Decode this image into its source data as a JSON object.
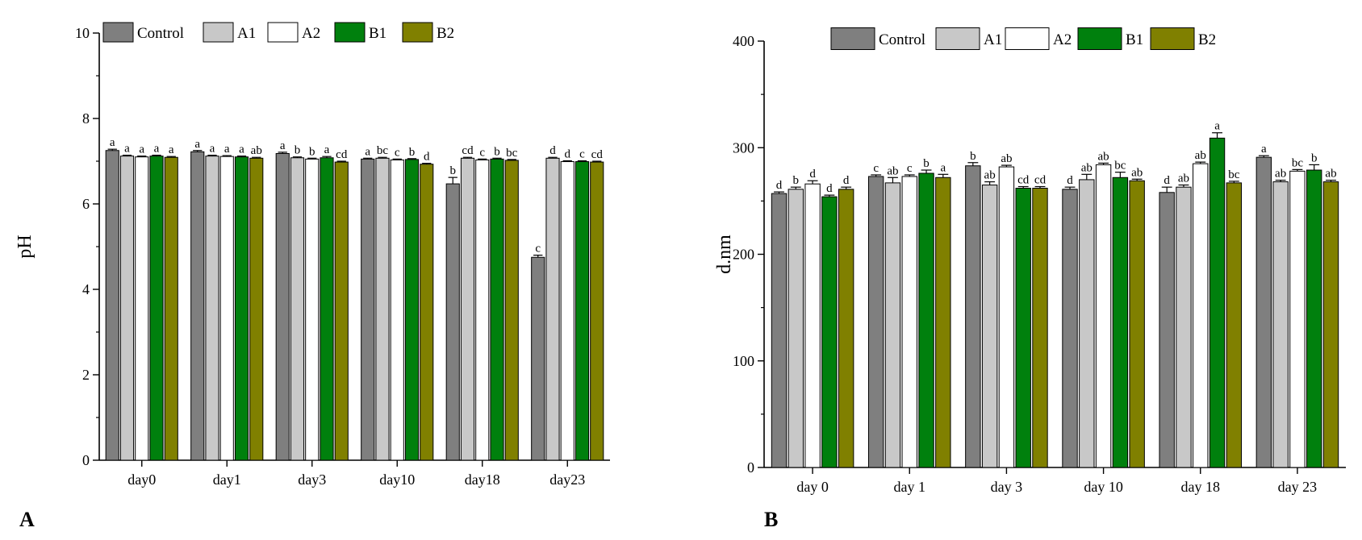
{
  "chart_data": [
    {
      "type": "bar",
      "panel_label": "A",
      "title": "",
      "xlabel": "",
      "ylabel": "pH",
      "ylim": [
        0,
        10
      ],
      "yticks": [
        0,
        2,
        4,
        6,
        8,
        10
      ],
      "categories": [
        "day0",
        "day1",
        "day3",
        "day10",
        "day18",
        "day23"
      ],
      "series": [
        {
          "name": "Control",
          "color": "#7f7f7f",
          "values": [
            7.25,
            7.22,
            7.18,
            7.05,
            6.47,
            4.75
          ],
          "errors": [
            0.03,
            0.03,
            0.03,
            0.02,
            0.15,
            0.05
          ],
          "letters": [
            "a",
            "a",
            "a",
            "a",
            "b",
            "c"
          ]
        },
        {
          "name": "A1",
          "color": "#c8c8c8",
          "values": [
            7.12,
            7.12,
            7.08,
            7.07,
            7.07,
            7.07
          ],
          "errors": [
            0.02,
            0.02,
            0.02,
            0.02,
            0.02,
            0.02
          ],
          "letters": [
            "a",
            "a",
            "b",
            "bc",
            "cd",
            "d"
          ]
        },
        {
          "name": "A2",
          "color": "#ffffff",
          "values": [
            7.1,
            7.11,
            7.05,
            7.03,
            7.03,
            6.99
          ],
          "errors": [
            0.02,
            0.02,
            0.02,
            0.02,
            0.02,
            0.02
          ],
          "letters": [
            "a",
            "a",
            "b",
            "c",
            "c",
            "d"
          ]
        },
        {
          "name": "B1",
          "color": "#00800d",
          "values": [
            7.12,
            7.1,
            7.08,
            7.04,
            7.05,
            6.99
          ],
          "errors": [
            0.02,
            0.02,
            0.03,
            0.02,
            0.02,
            0.02
          ],
          "letters": [
            "a",
            "a",
            "a",
            "b",
            "b",
            "c"
          ]
        },
        {
          "name": "B2",
          "color": "#808000",
          "values": [
            7.09,
            7.07,
            6.98,
            6.93,
            7.02,
            6.98
          ],
          "errors": [
            0.02,
            0.02,
            0.02,
            0.02,
            0.02,
            0.02
          ],
          "letters": [
            "a",
            "ab",
            "cd",
            "d",
            "bc",
            "cd"
          ]
        }
      ],
      "legend": "top-left, inside"
    },
    {
      "type": "bar",
      "panel_label": "B",
      "title": "",
      "xlabel": "",
      "ylabel": "d.nm",
      "ylim": [
        0,
        400
      ],
      "yticks": [
        0,
        100,
        200,
        300,
        400
      ],
      "categories": [
        "day 0",
        "day 1",
        "day 3",
        "day 10",
        "day 18",
        "day 23"
      ],
      "series": [
        {
          "name": "Control",
          "color": "#7f7f7f",
          "values": [
            257,
            273,
            283,
            261,
            258,
            291
          ],
          "errors": [
            1.5,
            1.5,
            3,
            2,
            5,
            1.5
          ],
          "letters": [
            "d",
            "c",
            "b",
            "d",
            "d",
            "a"
          ]
        },
        {
          "name": "A1",
          "color": "#c8c8c8",
          "values": [
            261,
            267,
            265,
            270,
            263,
            268
          ],
          "errors": [
            2,
            5,
            3,
            5,
            2,
            1.5
          ],
          "letters": [
            "b",
            "ab",
            "ab",
            "ab",
            "ab",
            "ab"
          ]
        },
        {
          "name": "A2",
          "color": "#ffffff",
          "values": [
            266,
            273,
            282,
            284,
            285,
            278
          ],
          "errors": [
            3,
            1.5,
            1.5,
            1.5,
            1.5,
            1.5
          ],
          "letters": [
            "d",
            "c",
            "ab",
            "ab",
            "ab",
            "bc"
          ]
        },
        {
          "name": "B1",
          "color": "#00800d",
          "values": [
            254,
            276,
            262,
            272,
            309,
            279
          ],
          "errors": [
            1.5,
            3,
            1.5,
            5,
            5,
            5
          ],
          "letters": [
            "d",
            "b",
            "cd",
            "bc",
            "a",
            "b"
          ]
        },
        {
          "name": "B2",
          "color": "#808000",
          "values": [
            261,
            272,
            262,
            269,
            267,
            268
          ],
          "errors": [
            2,
            3,
            1.5,
            1.5,
            1.5,
            1.5
          ],
          "letters": [
            "d",
            "a",
            "cd",
            "ab",
            "bc",
            "ab"
          ]
        }
      ],
      "legend": "top-left, inside"
    }
  ]
}
